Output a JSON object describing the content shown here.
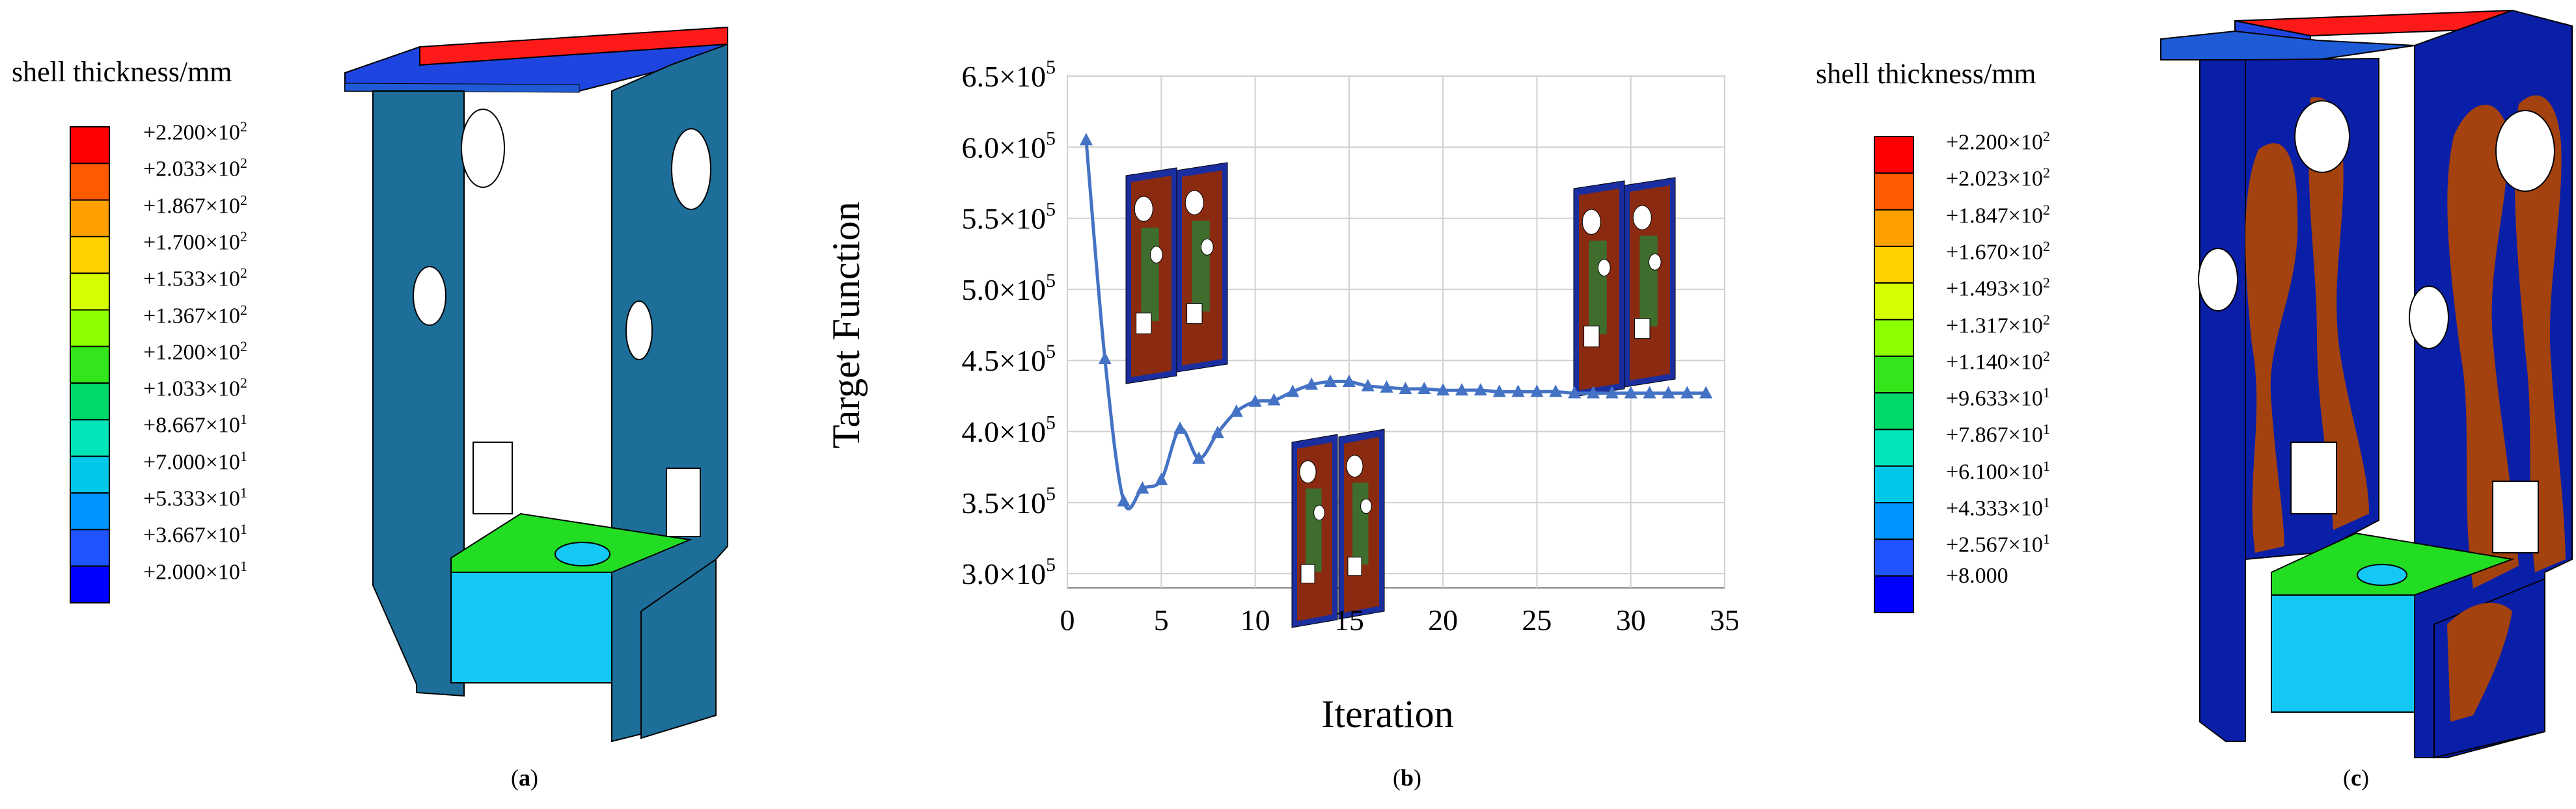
{
  "panel_a": {
    "caption": "a",
    "legend_title": "shell thickness/mm",
    "legend_colors": [
      "#ff0000",
      "#ff5a00",
      "#ff9f00",
      "#ffd200",
      "#d4ff00",
      "#8cff00",
      "#33e51a",
      "#00d86a",
      "#00e6b8",
      "#00c8e8",
      "#0094ff",
      "#1f55ff",
      "#0000ff"
    ],
    "legend_ticks": [
      {
        "mant": "+2.200×10",
        "exp": "2"
      },
      {
        "mant": "+2.033×10",
        "exp": "2"
      },
      {
        "mant": "+1.867×10",
        "exp": "2"
      },
      {
        "mant": "+1.700×10",
        "exp": "2"
      },
      {
        "mant": "+1.533×10",
        "exp": "2"
      },
      {
        "mant": "+1.367×10",
        "exp": "2"
      },
      {
        "mant": "+1.200×10",
        "exp": "2"
      },
      {
        "mant": "+1.033×10",
        "exp": "2"
      },
      {
        "mant": "+8.667×10",
        "exp": "1"
      },
      {
        "mant": "+7.000×10",
        "exp": "1"
      },
      {
        "mant": "+5.333×10",
        "exp": "1"
      },
      {
        "mant": "+3.667×10",
        "exp": "1"
      },
      {
        "mant": "+2.000×10",
        "exp": "1"
      }
    ],
    "model_colors": {
      "wall": "#1d6e99",
      "top_red": "#ff1a1a",
      "top_blue": "#1f45e0",
      "base_green": "#22dd22",
      "base_cyan": "#14c8f5"
    }
  },
  "panel_b": {
    "caption": "b"
  },
  "panel_c": {
    "caption": "c",
    "legend_title": "shell thickness/mm",
    "legend_colors": [
      "#ff0000",
      "#ff5a00",
      "#ff9f00",
      "#ffd200",
      "#d4ff00",
      "#8cff00",
      "#33e51a",
      "#00d86a",
      "#00e6b8",
      "#00c8e8",
      "#0094ff",
      "#1f55ff",
      "#0000ff"
    ],
    "legend_ticks": [
      {
        "mant": "+2.200×10",
        "exp": "2"
      },
      {
        "mant": "+2.023×10",
        "exp": "2"
      },
      {
        "mant": "+1.847×10",
        "exp": "2"
      },
      {
        "mant": "+1.670×10",
        "exp": "2"
      },
      {
        "mant": "+1.493×10",
        "exp": "2"
      },
      {
        "mant": "+1.317×10",
        "exp": "2"
      },
      {
        "mant": "+1.140×10",
        "exp": "2"
      },
      {
        "mant": "+9.633×10",
        "exp": "1"
      },
      {
        "mant": "+7.867×10",
        "exp": "1"
      },
      {
        "mant": "+6.100×10",
        "exp": "1"
      },
      {
        "mant": "+4.333×10",
        "exp": "1"
      },
      {
        "mant": "+2.567×10",
        "exp": "1"
      },
      {
        "mant": "+8.000",
        "exp": ""
      }
    ],
    "model_colors": {
      "wall": "#0a1fa8",
      "material": "#a3410f",
      "top_red": "#ff1a1a",
      "top_blue": "#1f45e0",
      "base_green": "#22dd22",
      "base_cyan": "#14c8f5"
    }
  },
  "chart_data": {
    "type": "line",
    "xlabel": "Iteration",
    "ylabel": "Target  Function",
    "xlim": [
      0,
      35
    ],
    "ylim": [
      290000,
      650000
    ],
    "x_ticks": [
      "0",
      "5",
      "10",
      "15",
      "20",
      "25",
      "30",
      "35"
    ],
    "x_tick_values": [
      0,
      5,
      10,
      15,
      20,
      25,
      30,
      35
    ],
    "y_tick_values": [
      300000,
      350000,
      400000,
      450000,
      500000,
      550000,
      600000,
      650000
    ],
    "y_ticks": [
      {
        "mant": "3.0×10",
        "exp": "5"
      },
      {
        "mant": "3.5×10",
        "exp": "5"
      },
      {
        "mant": "4.0×10",
        "exp": "5"
      },
      {
        "mant": "4.5×10",
        "exp": "5"
      },
      {
        "mant": "5.0×10",
        "exp": "5"
      },
      {
        "mant": "5.5×10",
        "exp": "5"
      },
      {
        "mant": "6.0×10",
        "exp": "5"
      },
      {
        "mant": "6.5×10",
        "exp": "5"
      }
    ],
    "grid": true,
    "line_color": "#4472c4",
    "series": [
      {
        "x": [
          1,
          2,
          3,
          4,
          5,
          6,
          7,
          8,
          9,
          10,
          11,
          12,
          13,
          14,
          15,
          16,
          17,
          18,
          19,
          20,
          21,
          22,
          23,
          24,
          25,
          26,
          27,
          28,
          29,
          30,
          31,
          32,
          33,
          34
        ],
        "values": [
          605000,
          451000,
          351000,
          360000,
          366000,
          402000,
          381000,
          399000,
          414000,
          421000,
          422000,
          428000,
          433000,
          435000,
          435000,
          432000,
          431000,
          430000,
          430000,
          429000,
          429000,
          429000,
          428000,
          428000,
          428000,
          428000,
          427000,
          427000,
          427000,
          427000,
          427000,
          427000,
          427000,
          427000
        ]
      }
    ]
  }
}
